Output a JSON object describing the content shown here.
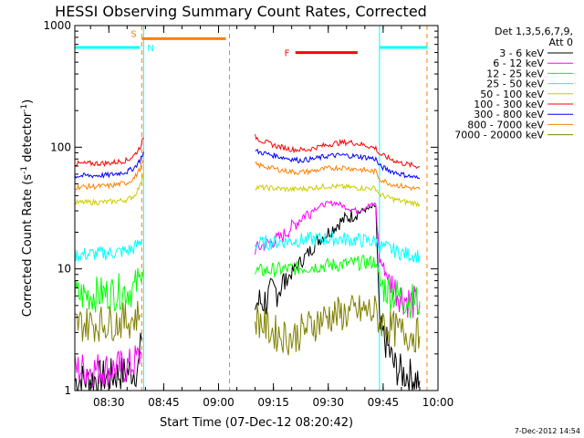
{
  "chart_data": {
    "type": "line",
    "title": "HESSI Observing Summary Count Rates, Corrected",
    "xlabel": "Start Time (07-Dec-12 08:20:42)",
    "ylabel": "Corrected Count Rate (s⁻¹ detector⁻¹)",
    "ylabel_main": "Corrected Count Rate (s",
    "ylabel_sup1": "-1",
    "ylabel_mid": " detector",
    "ylabel_sup2": "-1",
    "ylabel_end": ")",
    "yscale": "log",
    "ylim": [
      1,
      1000
    ],
    "xlim_minutes": [
      20.7,
      100
    ],
    "x_ticks": [
      {
        "m": 30,
        "label": "08:30"
      },
      {
        "m": 45,
        "label": "08:45"
      },
      {
        "m": 60,
        "label": "09:00"
      },
      {
        "m": 75,
        "label": "09:15"
      },
      {
        "m": 90,
        "label": "09:30"
      },
      {
        "m": 105,
        "label": "09:45"
      },
      {
        "m": 120,
        "label": "10:00"
      }
    ],
    "y_ticks": [
      {
        "v": 1,
        "label": "1"
      },
      {
        "v": 10,
        "label": "10"
      },
      {
        "v": 100,
        "label": "100"
      },
      {
        "v": 1000,
        "label": "1000"
      }
    ],
    "legend_title_1": "Det 1,3,5,6,7,9,",
    "legend_title_2": "Att 0",
    "legend_position": "top-right",
    "timestamp": "7-Dec-2012 14:54",
    "series": [
      {
        "name": "3 - 6 keV",
        "color": "#000000",
        "values": [
          [
            20.7,
            1.2
          ],
          [
            30,
            1.3
          ],
          [
            38,
            1.5
          ],
          [
            39,
            2.6
          ],
          [
            58,
            null
          ],
          [
            70,
            5.2
          ],
          [
            73,
            5.5
          ],
          [
            76,
            6.8
          ],
          [
            79,
            8.5
          ],
          [
            82,
            11
          ],
          [
            85,
            14
          ],
          [
            87,
            17
          ],
          [
            90,
            20
          ],
          [
            93,
            24
          ],
          [
            96,
            27
          ],
          [
            99,
            30
          ],
          [
            101,
            31
          ],
          [
            103,
            33
          ],
          [
            104,
            3.2
          ],
          [
            106,
            2.4
          ],
          [
            108,
            1.6
          ],
          [
            110,
            1.4
          ],
          [
            113,
            1.3
          ],
          [
            115,
            1.2
          ]
        ]
      },
      {
        "name": "6 - 12 keV",
        "color": "#ff00ff",
        "values": [
          [
            20.7,
            1.5
          ],
          [
            30,
            1.5
          ],
          [
            36,
            1.6
          ],
          [
            39,
            2.0
          ],
          [
            58,
            null
          ],
          [
            70,
            14.5
          ],
          [
            74,
            16.5
          ],
          [
            77,
            18
          ],
          [
            80,
            22
          ],
          [
            83,
            27
          ],
          [
            86,
            31
          ],
          [
            89,
            34
          ],
          [
            92,
            35
          ],
          [
            95,
            32
          ],
          [
            98,
            30
          ],
          [
            101,
            33
          ],
          [
            103,
            34
          ],
          [
            104,
            12
          ],
          [
            106,
            9
          ],
          [
            108,
            7
          ],
          [
            110,
            6
          ],
          [
            112,
            5.5
          ],
          [
            115,
            5
          ]
        ]
      },
      {
        "name": "12 - 25 keV",
        "color": "#00ff00",
        "values": [
          [
            20.7,
            6
          ],
          [
            30,
            6.3
          ],
          [
            37,
            6.8
          ],
          [
            38.5,
            8.5
          ],
          [
            39.5,
            10
          ],
          [
            58,
            null
          ],
          [
            70,
            9.5
          ],
          [
            75,
            9.8
          ],
          [
            80,
            10
          ],
          [
            84,
            10.3
          ],
          [
            88,
            10.6
          ],
          [
            92,
            10.8
          ],
          [
            96,
            11
          ],
          [
            100,
            11.3
          ],
          [
            103,
            11.5
          ],
          [
            104,
            7.5
          ],
          [
            107,
            6.5
          ],
          [
            110,
            5.8
          ],
          [
            113,
            5.5
          ],
          [
            115,
            5.4
          ]
        ]
      },
      {
        "name": "25 - 50 keV",
        "color": "#00ffff",
        "values": [
          [
            20.7,
            13
          ],
          [
            30,
            13.5
          ],
          [
            35,
            14
          ],
          [
            37,
            15
          ],
          [
            39,
            17
          ],
          [
            58,
            null
          ],
          [
            70,
            16
          ],
          [
            75,
            16.5
          ],
          [
            80,
            17
          ],
          [
            85,
            17.5
          ],
          [
            90,
            17.8
          ],
          [
            95,
            17.5
          ],
          [
            100,
            17
          ],
          [
            103,
            16.8
          ],
          [
            104,
            15.5
          ],
          [
            107,
            14.5
          ],
          [
            110,
            13.5
          ],
          [
            113,
            13
          ],
          [
            115,
            12.8
          ]
        ]
      },
      {
        "name": "50 - 100 keV",
        "color": "#cccc00",
        "values": [
          [
            20.7,
            35
          ],
          [
            30,
            35.5
          ],
          [
            35,
            37
          ],
          [
            37,
            40
          ],
          [
            38.5,
            48
          ],
          [
            39.5,
            62
          ],
          [
            58,
            null
          ],
          [
            70,
            47
          ],
          [
            75,
            46
          ],
          [
            80,
            45
          ],
          [
            85,
            46
          ],
          [
            90,
            48
          ],
          [
            95,
            47
          ],
          [
            100,
            46
          ],
          [
            103,
            46
          ],
          [
            104,
            41
          ],
          [
            107,
            38
          ],
          [
            110,
            36
          ],
          [
            113,
            35
          ],
          [
            115,
            34
          ]
        ]
      },
      {
        "name": "100 - 300 keV",
        "color": "#ff0000",
        "values": [
          [
            20.7,
            73
          ],
          [
            30,
            74
          ],
          [
            35,
            78
          ],
          [
            37,
            86
          ],
          [
            38.5,
            100
          ],
          [
            39.5,
            120
          ],
          [
            58,
            null
          ],
          [
            70,
            122
          ],
          [
            72,
            112
          ],
          [
            76,
            102
          ],
          [
            80,
            96
          ],
          [
            84,
            95
          ],
          [
            88,
            102
          ],
          [
            92,
            108
          ],
          [
            96,
            110
          ],
          [
            100,
            104
          ],
          [
            103,
            98
          ],
          [
            104,
            88
          ],
          [
            107,
            80
          ],
          [
            110,
            74
          ],
          [
            113,
            71
          ],
          [
            115,
            69
          ]
        ]
      },
      {
        "name": "300 - 800 keV",
        "color": "#0000ff",
        "values": [
          [
            20.7,
            58
          ],
          [
            30,
            59
          ],
          [
            35,
            63
          ],
          [
            37,
            68
          ],
          [
            38.5,
            78
          ],
          [
            39.5,
            92
          ],
          [
            58,
            null
          ],
          [
            70,
            93
          ],
          [
            74,
            87
          ],
          [
            78,
            82
          ],
          [
            82,
            78
          ],
          [
            86,
            80
          ],
          [
            90,
            85
          ],
          [
            94,
            86
          ],
          [
            98,
            84
          ],
          [
            101,
            82
          ],
          [
            103,
            80
          ],
          [
            104,
            70
          ],
          [
            107,
            64
          ],
          [
            110,
            60
          ],
          [
            113,
            57
          ],
          [
            115,
            55
          ]
        ]
      },
      {
        "name": "800 - 7000 keV",
        "color": "#ff8000",
        "values": [
          [
            20.7,
            47
          ],
          [
            30,
            48
          ],
          [
            35,
            51
          ],
          [
            37,
            56
          ],
          [
            38.5,
            66
          ],
          [
            39.5,
            78
          ],
          [
            58,
            null
          ],
          [
            70,
            72
          ],
          [
            74,
            68
          ],
          [
            78,
            64
          ],
          [
            82,
            62
          ],
          [
            86,
            64
          ],
          [
            90,
            67
          ],
          [
            94,
            68
          ],
          [
            98,
            66
          ],
          [
            101,
            64
          ],
          [
            103,
            63
          ],
          [
            104,
            55
          ],
          [
            107,
            50
          ],
          [
            110,
            48
          ],
          [
            113,
            46
          ],
          [
            115,
            45
          ]
        ]
      },
      {
        "name": "7000 - 20000 keV",
        "color": "#808000",
        "values": [
          [
            20.7,
            3.5
          ],
          [
            30,
            3.6
          ],
          [
            36,
            3.8
          ],
          [
            38.5,
            4.2
          ],
          [
            58,
            null
          ],
          [
            70,
            4.0
          ],
          [
            75,
            3.0
          ],
          [
            80,
            2.7
          ],
          [
            85,
            3.4
          ],
          [
            90,
            4.1
          ],
          [
            95,
            4.3
          ],
          [
            100,
            4.5
          ],
          [
            103,
            4.4
          ],
          [
            104,
            3.8
          ],
          [
            107,
            3.3
          ],
          [
            110,
            3.0
          ],
          [
            113,
            2.9
          ],
          [
            115,
            2.8
          ]
        ]
      }
    ],
    "annotations": [
      {
        "id": "s",
        "label": "S",
        "color": "#ff8000"
      },
      {
        "id": "n",
        "label": "N",
        "color": "#00ffff"
      },
      {
        "id": "f",
        "label": "F",
        "color": "#ff0000"
      }
    ],
    "orbit_events": {
      "saa_bar": {
        "color": "#ff8000",
        "start_m": 39,
        "end_m": 62,
        "y": 780
      },
      "night_bar_left": {
        "color": "#00ffff",
        "start_m": 20.7,
        "end_m": 38.5,
        "y": 660
      },
      "night_bar_right": {
        "color": "#00ffff",
        "start_m": 104,
        "end_m": 117,
        "y": 660
      },
      "flare_bar": {
        "color": "#ff0000",
        "start_m": 81,
        "end_m": 98,
        "y": 600
      },
      "vlines_cyan": [
        39.5,
        104
      ],
      "vlines_orange_dashed": [
        39,
        63,
        117
      ]
    }
  }
}
